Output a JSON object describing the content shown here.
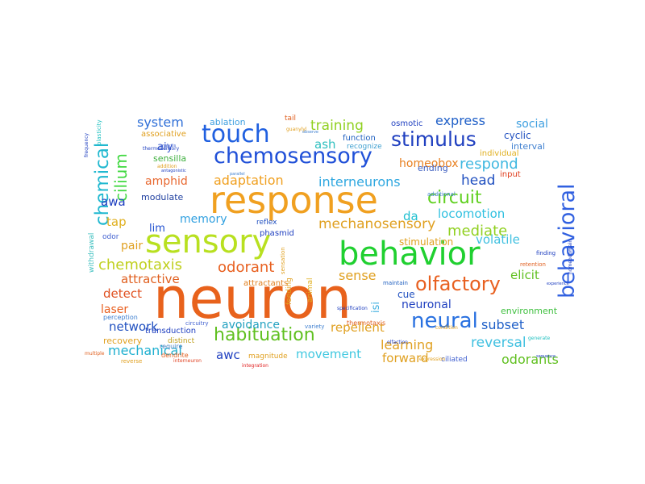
{
  "words": [
    {
      "text": "neuron",
      "color": "#e8621c"
    },
    {
      "text": "response",
      "color": "#f0a020"
    },
    {
      "text": "sensory",
      "color": "#b8e020"
    },
    {
      "text": "behavior",
      "color": "#20d030"
    },
    {
      "text": "touch",
      "color": "#2060e0"
    },
    {
      "text": "chemosensory",
      "color": "#2050d8"
    },
    {
      "text": "stimulus",
      "color": "#2040c0"
    },
    {
      "text": "behavioral",
      "color": "#3060e0"
    },
    {
      "text": "neural",
      "color": "#2870e0"
    },
    {
      "text": "olfactory",
      "color": "#e86020"
    },
    {
      "text": "habituation",
      "color": "#60c020"
    },
    {
      "text": "circuit",
      "color": "#60d020"
    },
    {
      "text": "chemical",
      "color": "#20b8d0"
    },
    {
      "text": "cilium",
      "color": "#40d840"
    },
    {
      "text": "training",
      "color": "#90d020"
    },
    {
      "text": "express",
      "color": "#2060c8"
    },
    {
      "text": "system",
      "color": "#3070d8"
    },
    {
      "text": "respond",
      "color": "#40b8e0"
    },
    {
      "text": "interneurons",
      "color": "#30a8e0"
    },
    {
      "text": "adaptation",
      "color": "#f0a020"
    },
    {
      "text": "amphid",
      "color": "#e86830"
    },
    {
      "text": "mechanosensory",
      "color": "#e0a020"
    },
    {
      "text": "head",
      "color": "#2050c0"
    },
    {
      "text": "homeobox",
      "color": "#e88020"
    },
    {
      "text": "ash",
      "color": "#30c0c0"
    },
    {
      "text": "awa",
      "color": "#2040c0"
    },
    {
      "text": "aiy",
      "color": "#4060d0"
    },
    {
      "text": "modulate",
      "color": "#2040a0"
    },
    {
      "text": "lim",
      "color": "#2050d0"
    },
    {
      "text": "tap",
      "color": "#e0b020"
    },
    {
      "text": "memory",
      "color": "#30a0e0"
    },
    {
      "text": "da",
      "color": "#20c0d0"
    },
    {
      "text": "locomotion",
      "color": "#30c0e0"
    },
    {
      "text": "mediate",
      "color": "#90d020"
    },
    {
      "text": "volatile",
      "color": "#40c0e0"
    },
    {
      "text": "pair",
      "color": "#e0a020"
    },
    {
      "text": "chemotaxis",
      "color": "#c0d020"
    },
    {
      "text": "odorant",
      "color": "#e86020"
    },
    {
      "text": "attractive",
      "color": "#e06020"
    },
    {
      "text": "sense",
      "color": "#e0a020"
    },
    {
      "text": "elicit",
      "color": "#60c020"
    },
    {
      "text": "detect",
      "color": "#e05020"
    },
    {
      "text": "laser",
      "color": "#e86020"
    },
    {
      "text": "network",
      "color": "#2050c0"
    },
    {
      "text": "avoidance",
      "color": "#20a0c0"
    },
    {
      "text": "repellent",
      "color": "#e0a020"
    },
    {
      "text": "subset",
      "color": "#2060c8"
    },
    {
      "text": "reversal",
      "color": "#40c0e0"
    },
    {
      "text": "learning",
      "color": "#e0a020"
    },
    {
      "text": "mechanical",
      "color": "#20b0d0"
    },
    {
      "text": "awc",
      "color": "#2040c0"
    },
    {
      "text": "movement",
      "color": "#40c8e0"
    },
    {
      "text": "forward",
      "color": "#e0a020"
    },
    {
      "text": "odorants",
      "color": "#60c020"
    },
    {
      "text": "neuronal",
      "color": "#2040c0"
    },
    {
      "text": "isi",
      "color": "#40b0e0"
    },
    {
      "text": "cue",
      "color": "#2050c0"
    },
    {
      "text": "environment",
      "color": "#40c040"
    },
    {
      "text": "social",
      "color": "#40a0e0"
    },
    {
      "text": "cyclic",
      "color": "#2050c0"
    },
    {
      "text": "interval",
      "color": "#4080d0"
    },
    {
      "text": "ending",
      "color": "#4060c0"
    },
    {
      "text": "osmotic",
      "color": "#2040c0"
    },
    {
      "text": "ablation",
      "color": "#40a0e0"
    },
    {
      "text": "tail",
      "color": "#e06020"
    },
    {
      "text": "associative",
      "color": "#e0a020"
    },
    {
      "text": "sensilla",
      "color": "#40b040"
    },
    {
      "text": "function",
      "color": "#2060c0"
    },
    {
      "text": "recognize",
      "color": "#40a0d0"
    },
    {
      "text": "individual",
      "color": "#e0b020"
    },
    {
      "text": "input",
      "color": "#e04020"
    },
    {
      "text": "attractants",
      "color": "#e08020"
    },
    {
      "text": "reflex",
      "color": "#2050c0"
    },
    {
      "text": "phasmid",
      "color": "#2040c0"
    },
    {
      "text": "stimulation",
      "color": "#e0a020"
    },
    {
      "text": "odor",
      "color": "#4060d0"
    },
    {
      "text": "withdrawal",
      "color": "#40c0c0"
    },
    {
      "text": "transduction",
      "color": "#2040c0"
    },
    {
      "text": "recovery",
      "color": "#e0a020"
    },
    {
      "text": "perception",
      "color": "#4080d0"
    },
    {
      "text": "magnitude",
      "color": "#e0a020"
    },
    {
      "text": "ciliated",
      "color": "#4060d0"
    },
    {
      "text": "animal",
      "color": "#e0b020"
    },
    {
      "text": "feeding",
      "color": "#e0a020"
    },
    {
      "text": "distinct",
      "color": "#c0a020"
    },
    {
      "text": "require",
      "color": "#4080c0"
    },
    {
      "text": "dendrite",
      "color": "#e06020"
    },
    {
      "text": "circuitry",
      "color": "#4060d0"
    },
    {
      "text": "variety",
      "color": "#4080d0"
    },
    {
      "text": "plasticity",
      "color": "#20c0c0"
    },
    {
      "text": "frequency",
      "color": "#2040c0"
    },
    {
      "text": "additional",
      "color": "#4080d0"
    },
    {
      "text": "olfaction",
      "color": "#2040c0"
    },
    {
      "text": "maintain",
      "color": "#2060c0"
    },
    {
      "text": "finding",
      "color": "#2040c0"
    },
    {
      "text": "retention",
      "color": "#e06020"
    },
    {
      "text": "generate",
      "color": "#20c0c0"
    },
    {
      "text": "thermosensory",
      "color": "#2040c0"
    },
    {
      "text": "thermotaxis",
      "color": "#e06020"
    },
    {
      "text": "multiple",
      "color": "#e06020"
    },
    {
      "text": "reverse",
      "color": "#e0a020"
    },
    {
      "text": "interneuron",
      "color": "#e04020"
    },
    {
      "text": "integration",
      "color": "#e02020"
    },
    {
      "text": "sensation",
      "color": "#e0a020"
    },
    {
      "text": "addition",
      "color": "#e0a020"
    },
    {
      "text": "analysis",
      "color": "#4060d0"
    },
    {
      "text": "antagonistic",
      "color": "#2040c0"
    },
    {
      "text": "parallel",
      "color": "#4080d0"
    },
    {
      "text": "guanylyl",
      "color": "#e0a020"
    },
    {
      "text": "observe",
      "color": "#4080d0"
    },
    {
      "text": "specification",
      "color": "#2040c0"
    },
    {
      "text": "homeodomain",
      "color": "#2040c0"
    },
    {
      "text": "experience",
      "color": "#2040c0"
    },
    {
      "text": "condition",
      "color": "#e0a020"
    },
    {
      "text": "sequence",
      "color": "#2040c0"
    },
    {
      "text": "expression",
      "color": "#e0a020"
    }
  ]
}
